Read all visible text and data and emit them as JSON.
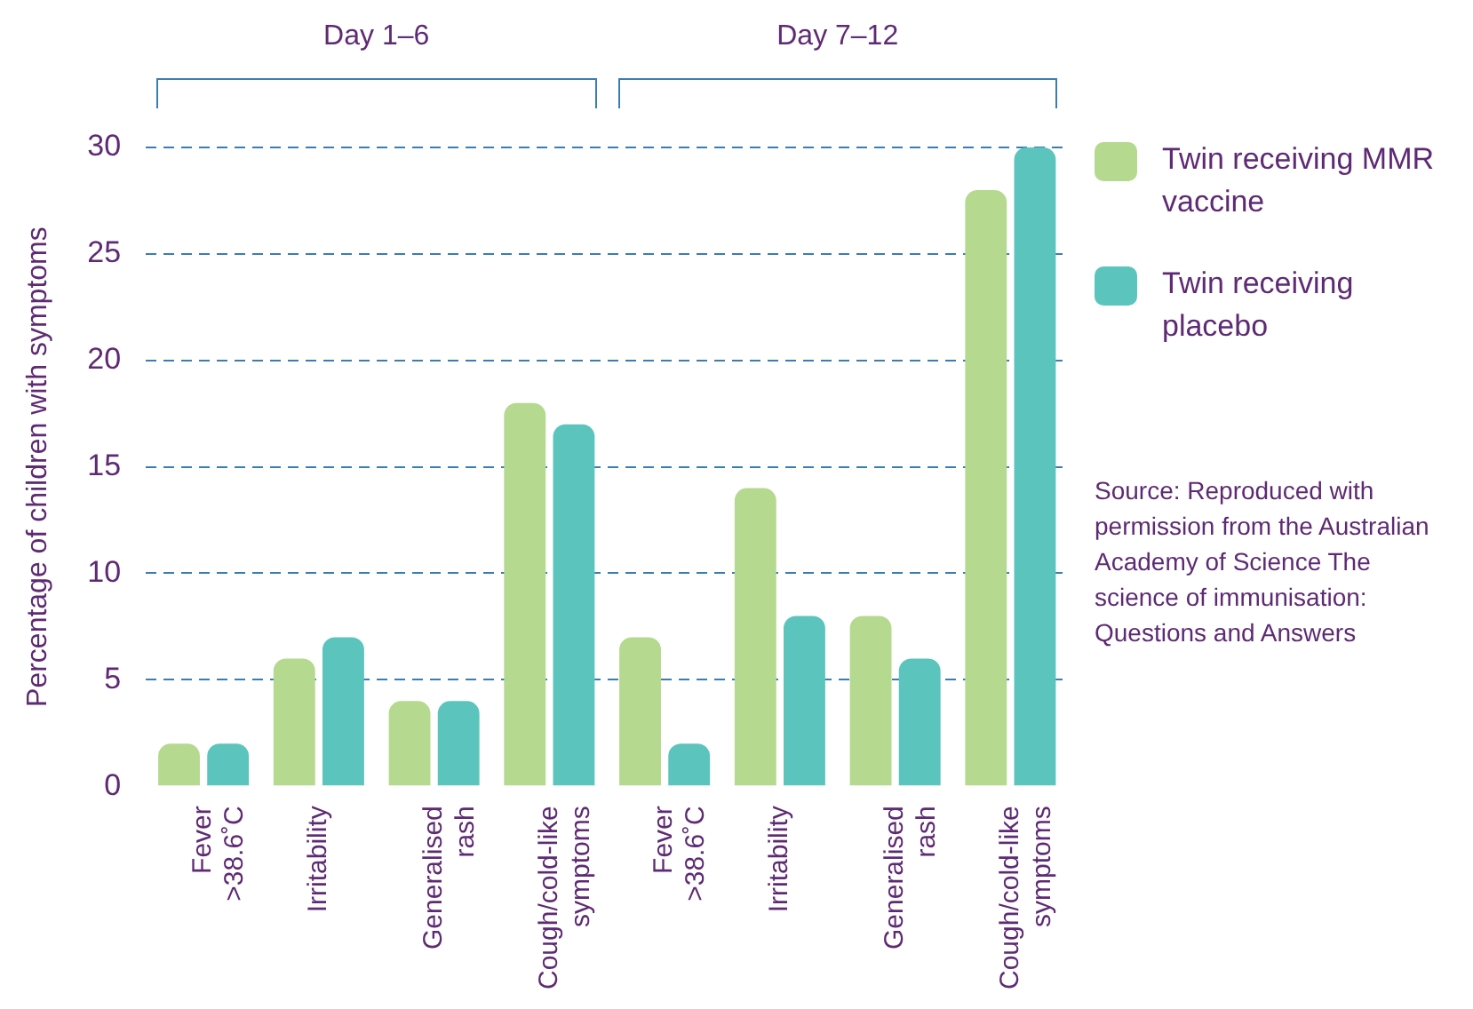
{
  "chart_data": {
    "type": "bar",
    "ylabel": "Percentage of children with symptoms",
    "categories": [
      "Fever\n>38.6˚C",
      "Irritability",
      "Generalised\nrash",
      "Cough/cold-like\nsymptoms",
      "Fever\n>38.6˚C",
      "Irritability",
      "Generalised\nrash",
      "Cough/cold-like\nsymptoms"
    ],
    "series": [
      {
        "name": "Twin receiving MMR vaccine",
        "color": "#b5d98f",
        "values": [
          2,
          6,
          4,
          18,
          7,
          14,
          8,
          28
        ]
      },
      {
        "name": "Twin receiving placebo",
        "color": "#5bc5bd",
        "values": [
          2,
          7,
          4,
          17,
          2,
          8,
          6,
          30
        ]
      }
    ],
    "ylim": [
      0,
      30
    ],
    "yticks": [
      0,
      5,
      10,
      15,
      20,
      25,
      30
    ],
    "grid": "y",
    "legend": "right",
    "annotations": [
      "Day 1–6",
      "Day 7–12",
      "Source: Reproduced with permission from the Australian Academy of Science The science of immunisation: Questions and Answers"
    ]
  }
}
